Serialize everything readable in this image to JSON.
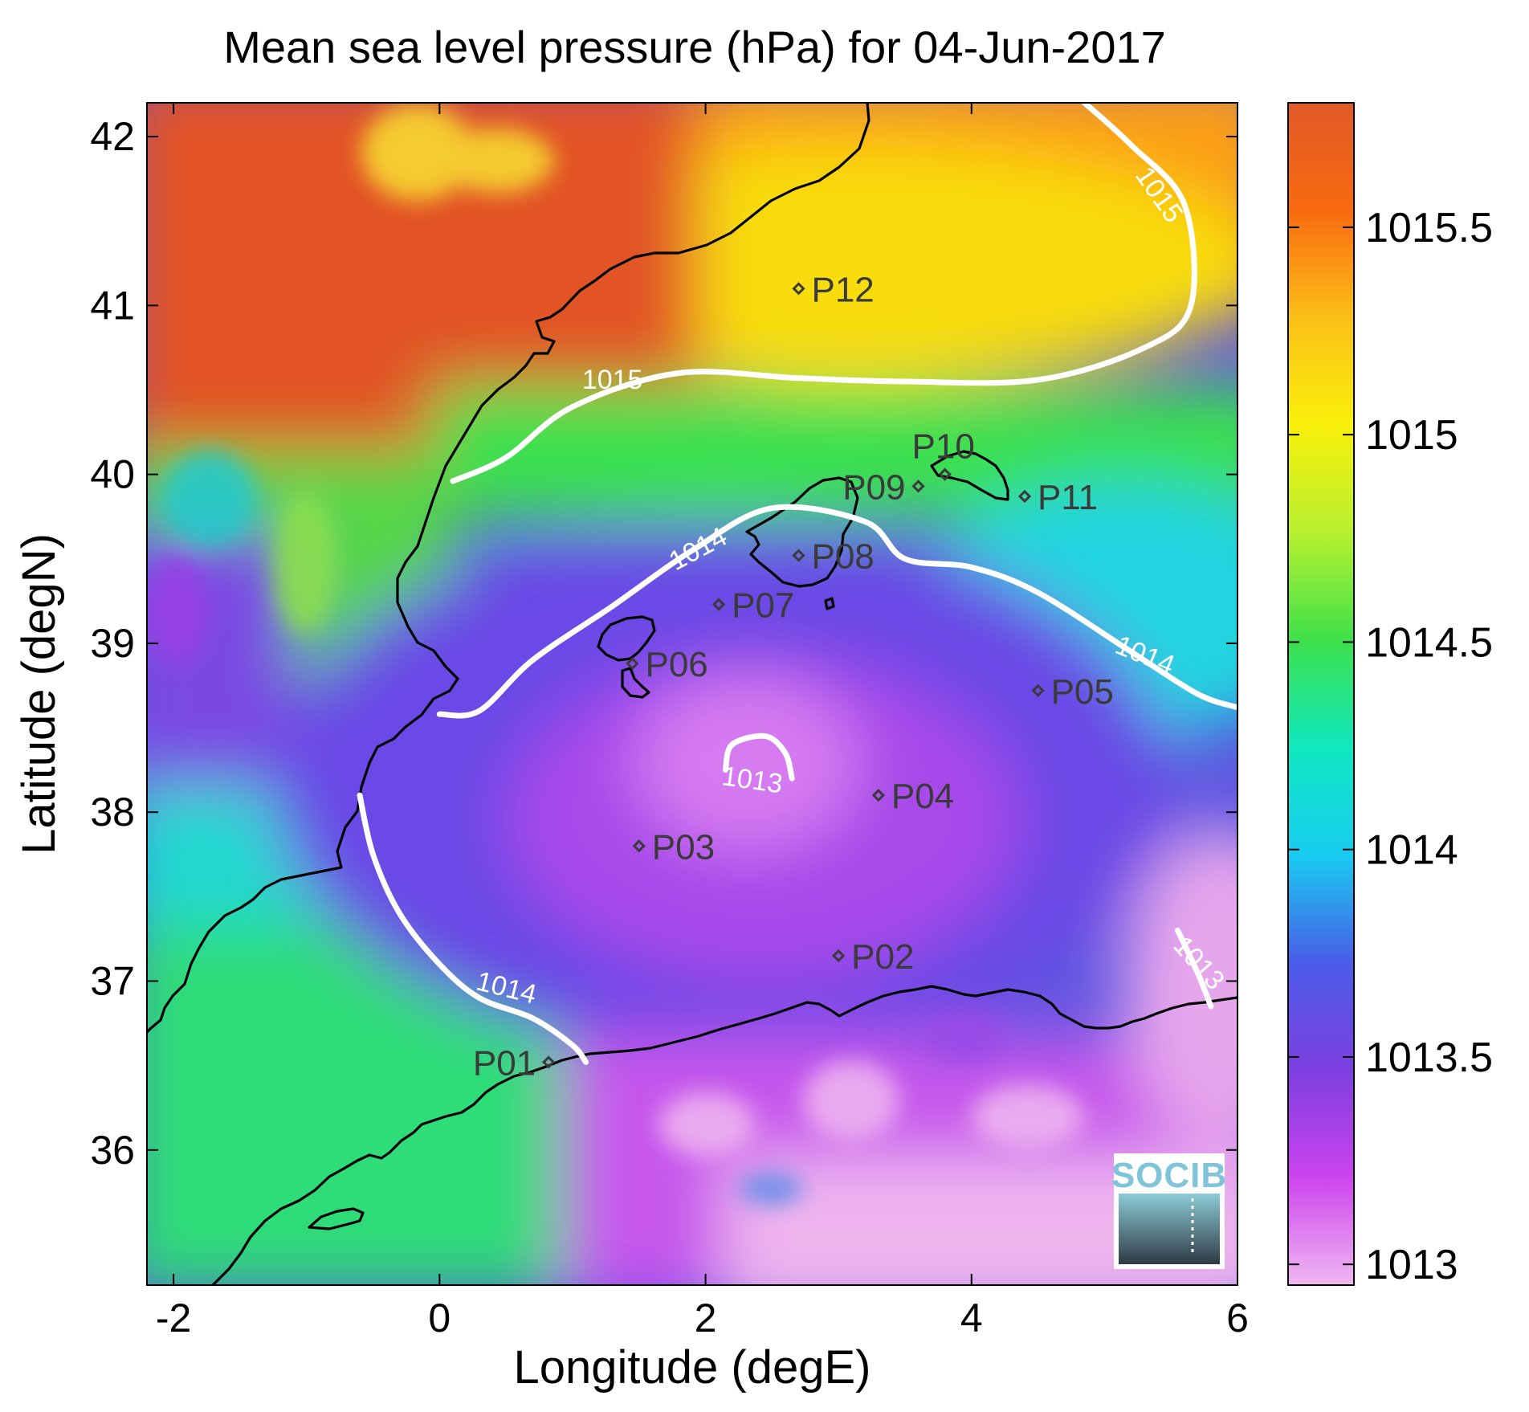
{
  "title": "Mean sea level pressure (hPa) for 04-Jun-2017",
  "xlabel": "Longitude (degE)",
  "ylabel": "Latitude (degN)",
  "xlim": [
    -2.2,
    6
  ],
  "ylim": [
    35.2,
    42.2
  ],
  "xticks": [
    {
      "value": -2,
      "label": "-2"
    },
    {
      "value": 0,
      "label": "0"
    },
    {
      "value": 2,
      "label": "2"
    },
    {
      "value": 4,
      "label": "4"
    },
    {
      "value": 6,
      "label": "6"
    }
  ],
  "yticks": [
    {
      "value": 36,
      "label": "36"
    },
    {
      "value": 37,
      "label": "37"
    },
    {
      "value": 38,
      "label": "38"
    },
    {
      "value": 39,
      "label": "39"
    },
    {
      "value": 40,
      "label": "40"
    },
    {
      "value": 41,
      "label": "41"
    },
    {
      "value": 42,
      "label": "42"
    }
  ],
  "colorbar": {
    "range": [
      1012.95,
      1015.8
    ],
    "ticks": [
      {
        "value": 1013,
        "label": "1013"
      },
      {
        "value": 1013.5,
        "label": "1013.5"
      },
      {
        "value": 1014,
        "label": "1014"
      },
      {
        "value": 1014.5,
        "label": "1014.5"
      },
      {
        "value": 1015,
        "label": "1015"
      },
      {
        "value": 1015.5,
        "label": "1015.5"
      }
    ],
    "colors": [
      "#f0b8f0",
      "#cc44ee",
      "#7d3fe0",
      "#4a5ce8",
      "#18ccf0",
      "#10e8c0",
      "#3ee04a",
      "#b8f030",
      "#f8f00a",
      "#fcc018",
      "#f86a10",
      "#e05a28"
    ]
  },
  "stations": [
    {
      "id": "P01",
      "lon": 0.82,
      "lat": 36.52,
      "label_side": "left"
    },
    {
      "id": "P02",
      "lon": 3.0,
      "lat": 37.15,
      "label_side": "right"
    },
    {
      "id": "P03",
      "lon": 1.5,
      "lat": 37.8,
      "label_side": "right"
    },
    {
      "id": "P04",
      "lon": 3.3,
      "lat": 38.1,
      "label_side": "right"
    },
    {
      "id": "P05",
      "lon": 4.5,
      "lat": 38.72,
      "label_side": "right"
    },
    {
      "id": "P06",
      "lon": 1.45,
      "lat": 38.88,
      "label_side": "right"
    },
    {
      "id": "P07",
      "lon": 2.1,
      "lat": 39.23,
      "label_side": "right"
    },
    {
      "id": "P08",
      "lon": 2.7,
      "lat": 39.52,
      "label_side": "right"
    },
    {
      "id": "P09",
      "lon": 3.6,
      "lat": 39.93,
      "label_side": "left"
    },
    {
      "id": "P10",
      "lon": 3.8,
      "lat": 40.0,
      "label_side": "above"
    },
    {
      "id": "P11",
      "lon": 4.4,
      "lat": 39.87,
      "label_side": "right"
    },
    {
      "id": "P12",
      "lon": 2.7,
      "lat": 41.1,
      "label_side": "right"
    }
  ],
  "contours": [
    {
      "level": "1015",
      "points": [
        [
          0.1,
          39.96
        ],
        [
          0.5,
          40.1
        ],
        [
          1.0,
          40.4
        ],
        [
          1.8,
          40.6
        ],
        [
          2.7,
          40.57
        ],
        [
          3.5,
          40.55
        ],
        [
          4.5,
          40.56
        ],
        [
          5.3,
          40.75
        ],
        [
          5.65,
          41.0
        ],
        [
          5.6,
          41.6
        ],
        [
          5.2,
          41.95
        ],
        [
          4.85,
          42.2
        ]
      ]
    },
    {
      "level": "1014",
      "points": [
        [
          0.0,
          38.58
        ],
        [
          0.3,
          38.6
        ],
        [
          0.7,
          38.9
        ],
        [
          1.3,
          39.22
        ],
        [
          1.9,
          39.55
        ],
        [
          2.5,
          39.8
        ],
        [
          3.2,
          39.72
        ],
        [
          3.5,
          39.5
        ],
        [
          4.0,
          39.45
        ],
        [
          4.5,
          39.3
        ],
        [
          5.2,
          38.95
        ],
        [
          5.7,
          38.7
        ],
        [
          6.0,
          38.62
        ]
      ]
    },
    {
      "level": "1014",
      "points": [
        [
          -0.6,
          38.1
        ],
        [
          -0.5,
          37.75
        ],
        [
          -0.3,
          37.4
        ],
        [
          0.0,
          37.1
        ],
        [
          0.3,
          36.9
        ],
        [
          0.7,
          36.78
        ],
        [
          1.0,
          36.62
        ],
        [
          1.1,
          36.52
        ]
      ]
    },
    {
      "level": "1013",
      "points": [
        [
          2.15,
          38.25
        ],
        [
          2.2,
          38.4
        ],
        [
          2.45,
          38.45
        ],
        [
          2.6,
          38.35
        ],
        [
          2.65,
          38.2
        ]
      ]
    },
    {
      "level": "1013",
      "points": [
        [
          5.55,
          37.3
        ],
        [
          5.7,
          37.05
        ],
        [
          5.8,
          36.85
        ]
      ]
    }
  ],
  "contour_labels": [
    {
      "text": "1015",
      "lon": 1.3,
      "lat": 40.55,
      "angle": 0
    },
    {
      "text": "1015",
      "lon": 5.4,
      "lat": 41.65,
      "angle": 55
    },
    {
      "text": "1014",
      "lon": 1.95,
      "lat": 39.55,
      "angle": -28
    },
    {
      "text": "1014",
      "lon": 5.3,
      "lat": 38.92,
      "angle": 22
    },
    {
      "text": "1014",
      "lon": 0.5,
      "lat": 36.95,
      "angle": 14
    },
    {
      "text": "1013",
      "lon": 2.35,
      "lat": 38.18,
      "angle": 8
    },
    {
      "text": "1013",
      "lon": 5.7,
      "lat": 37.1,
      "angle": 48
    }
  ],
  "logo": {
    "text": "SOCIB"
  }
}
